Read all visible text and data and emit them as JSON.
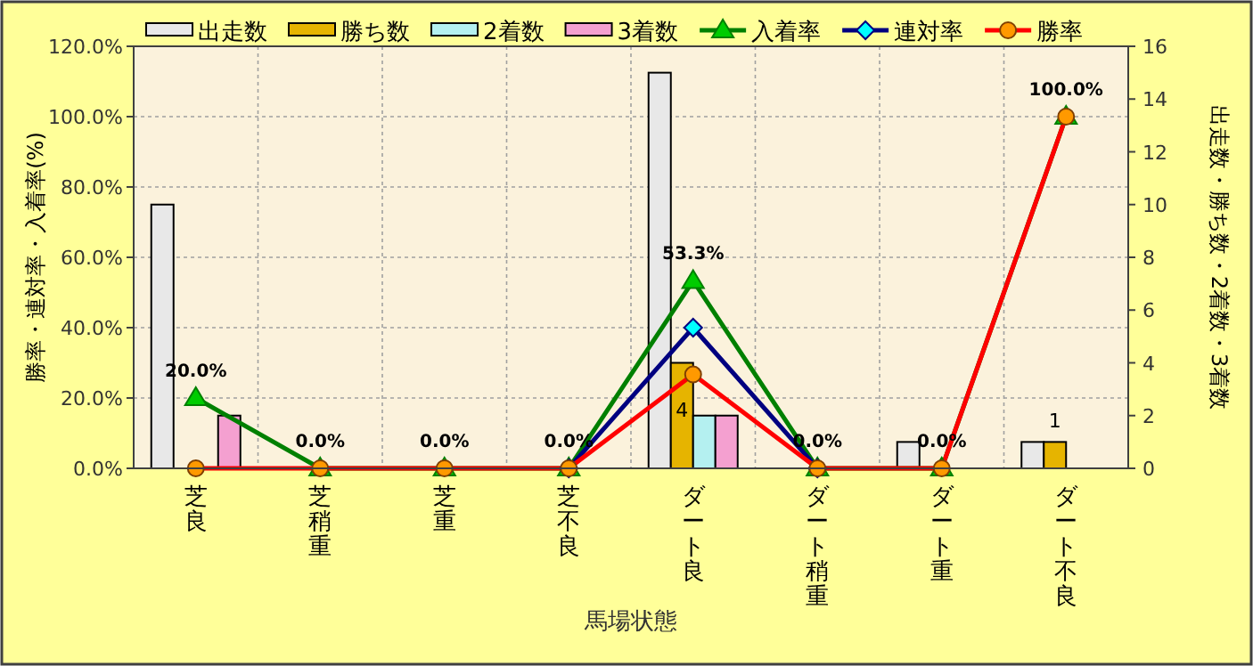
{
  "chart_data": {
    "type": "bar",
    "xlabel": "馬場状態",
    "ylabel": "勝率・連対率・入着率(%)",
    "y2label": "出走数・勝ち数・2着数・3着数",
    "categories": [
      "芝良",
      "芝稍重",
      "芝重",
      "芝不良",
      "ダート良",
      "ダート稍重",
      "ダート重",
      "ダート不良"
    ],
    "series": [
      {
        "name": "出走数",
        "axis": "y2",
        "color": "#e8e8e8",
        "values": [
          10,
          0,
          0,
          0,
          15,
          0,
          1,
          1
        ]
      },
      {
        "name": "勝ち数",
        "axis": "y2",
        "color": "#e6b400",
        "values": [
          0,
          0,
          0,
          0,
          4,
          0,
          0,
          1
        ],
        "value_labels": [
          null,
          null,
          null,
          null,
          "4",
          null,
          null,
          "1"
        ]
      },
      {
        "name": "2着数",
        "axis": "y2",
        "color": "#b4f0f0",
        "values": [
          0,
          0,
          0,
          0,
          2,
          0,
          0,
          0
        ]
      },
      {
        "name": "3着数",
        "axis": "y2",
        "color": "#f4a0d0",
        "values": [
          2,
          0,
          0,
          0,
          2,
          0,
          0,
          0
        ]
      },
      {
        "name": "入着率",
        "type": "line",
        "color": "#008000",
        "marker": "triangle",
        "values": [
          20,
          0,
          0,
          0,
          53.3,
          0,
          0,
          100
        ],
        "value_labels": [
          "20.0%",
          "0.0%",
          "0.0%",
          "0.0%",
          "53.3%",
          "0.0%",
          "0.0%",
          "100.0%"
        ]
      },
      {
        "name": "連対率",
        "type": "line",
        "color": "#000080",
        "marker": "diamond",
        "values": [
          null,
          null,
          null,
          0,
          40,
          0,
          null,
          null
        ]
      },
      {
        "name": "勝率",
        "type": "line",
        "color": "#ff0000",
        "marker": "circle",
        "values": [
          0,
          0,
          0,
          0,
          26.7,
          0,
          0,
          100
        ]
      }
    ],
    "ylim": [
      0,
      120
    ],
    "yticks": [
      {
        "value": 0,
        "label": "0.0%"
      },
      {
        "value": 20,
        "label": "20.0%"
      },
      {
        "value": 40,
        "label": "40.0%"
      },
      {
        "value": 60,
        "label": "60.0%"
      },
      {
        "value": 80,
        "label": "80.0%"
      },
      {
        "value": 100,
        "label": "100.0%"
      },
      {
        "value": 120,
        "label": "120.0%"
      }
    ],
    "y2lim": [
      0,
      16
    ],
    "y2ticks": [
      0,
      2,
      4,
      6,
      8,
      10,
      12,
      14,
      16
    ],
    "grid": true,
    "legend": "top"
  }
}
